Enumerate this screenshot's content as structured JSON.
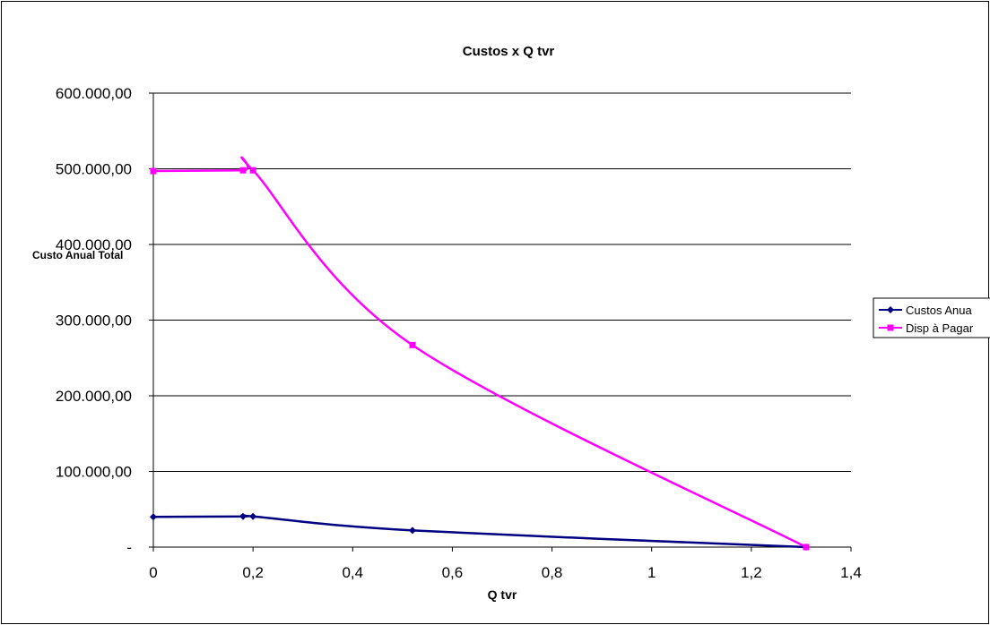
{
  "chart_data": {
    "type": "line",
    "title": "Custos x Q tvr",
    "xlabel": "Q tvr",
    "ylabel": "Custo Anual Total",
    "xlim": [
      0,
      1.4
    ],
    "ylim": [
      0,
      600000
    ],
    "x_ticks": [
      {
        "value": 0,
        "label": "0"
      },
      {
        "value": 0.2,
        "label": "0,2"
      },
      {
        "value": 0.4,
        "label": "0,4"
      },
      {
        "value": 0.6,
        "label": "0,6"
      },
      {
        "value": 0.8,
        "label": "0,8"
      },
      {
        "value": 1.0,
        "label": "1"
      },
      {
        "value": 1.2,
        "label": "1,2"
      },
      {
        "value": 1.4,
        "label": "1,4"
      }
    ],
    "y_ticks": [
      {
        "value": 0,
        "label": "-"
      },
      {
        "value": 100000,
        "label": "100.000,00"
      },
      {
        "value": 200000,
        "label": "200.000,00"
      },
      {
        "value": 300000,
        "label": "300.000,00"
      },
      {
        "value": 400000,
        "label": "400.000,00"
      },
      {
        "value": 500000,
        "label": "500.000,00"
      },
      {
        "value": 600000,
        "label": "600.000,00"
      }
    ],
    "grid": "horizontal",
    "legend_position": "right",
    "series": [
      {
        "name": "Custos Anua",
        "color": "#000080",
        "marker": "diamond",
        "x": [
          0,
          0.18,
          0.2,
          0.52,
          1.31
        ],
        "y": [
          40000,
          40500,
          40500,
          22000,
          0
        ]
      },
      {
        "name": "Disp à Pagar",
        "color": "#ff00ff",
        "marker": "square",
        "x": [
          0,
          0.18,
          0.2,
          0.52,
          1.31
        ],
        "y": [
          497000,
          498000,
          498000,
          267000,
          0
        ]
      }
    ]
  }
}
